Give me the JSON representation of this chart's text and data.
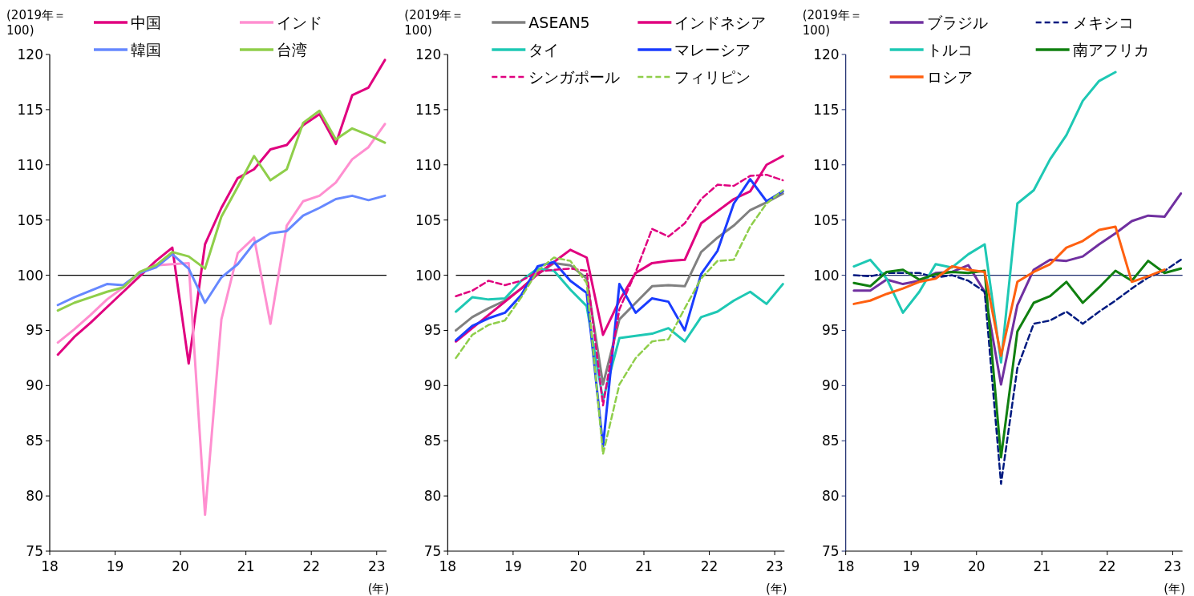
{
  "chart_data": [
    {
      "type": "line",
      "xlabel": "(年)",
      "ylabel": "(2019年＝100)",
      "legend": "top",
      "x": [
        18.125,
        18.375,
        18.625,
        18.875,
        19.125,
        19.375,
        19.625,
        19.875,
        20.125,
        20.375,
        20.625,
        20.875,
        21.125,
        21.375,
        21.625,
        21.875,
        22.125,
        22.375,
        22.625,
        22.875,
        23.125
      ],
      "xlim": [
        18,
        23.15
      ],
      "xticks": [
        18,
        19,
        20,
        21,
        22,
        23
      ],
      "ylim": [
        75,
        120
      ],
      "yticks": [
        75,
        80,
        85,
        90,
        95,
        100,
        105,
        110,
        115,
        120
      ],
      "ref_lines": [
        {
          "axis": "y",
          "value": 100,
          "color": "#000000"
        }
      ],
      "series": [
        {
          "name": "中国",
          "color": "#e0007f",
          "values": [
            92.8,
            94.4,
            95.7,
            97.1,
            98.5,
            99.9,
            101.3,
            102.5,
            92.0,
            102.8,
            106.1,
            108.8,
            109.6,
            111.4,
            111.8,
            113.6,
            114.6,
            111.9,
            116.3,
            117.0,
            119.5
          ]
        },
        {
          "name": "インド",
          "color": "#ff8fd0",
          "values": [
            93.9,
            95.1,
            96.4,
            97.8,
            98.9,
            100.2,
            100.9,
            101.0,
            101.1,
            78.3,
            96.0,
            102.0,
            103.4,
            95.6,
            104.5,
            106.7,
            107.2,
            108.4,
            110.5,
            111.6,
            113.7
          ]
        },
        {
          "name": "韓国",
          "color": "#6688ff",
          "values": [
            97.3,
            98.0,
            98.6,
            99.2,
            99.1,
            100.2,
            100.7,
            101.9,
            100.6,
            97.5,
            99.8,
            101.0,
            102.9,
            103.8,
            104.0,
            105.4,
            106.1,
            106.9,
            107.2,
            106.8,
            107.2
          ]
        },
        {
          "name": "台湾",
          "color": "#8fce4a",
          "values": [
            96.8,
            97.5,
            98.0,
            98.5,
            98.9,
            100.3,
            100.9,
            102.1,
            101.7,
            100.6,
            105.3,
            108.0,
            110.8,
            108.6,
            109.6,
            113.8,
            114.9,
            112.3,
            113.3,
            112.7,
            112.0
          ]
        }
      ]
    },
    {
      "type": "line",
      "xlabel": "(年)",
      "ylabel": "(2019年＝100)",
      "legend": "top",
      "x": [
        18.125,
        18.375,
        18.625,
        18.875,
        19.125,
        19.375,
        19.625,
        19.875,
        20.125,
        20.375,
        20.625,
        20.875,
        21.125,
        21.375,
        21.625,
        21.875,
        22.125,
        22.375,
        22.625,
        22.875,
        23.125
      ],
      "xlim": [
        18,
        23.15
      ],
      "xticks": [
        18,
        19,
        20,
        21,
        22,
        23
      ],
      "ylim": [
        75,
        120
      ],
      "yticks": [
        75,
        80,
        85,
        90,
        95,
        100,
        105,
        110,
        115,
        120
      ],
      "ref_lines": [
        {
          "axis": "y",
          "value": 100,
          "color": "#000000"
        }
      ],
      "series": [
        {
          "name": "ASEAN5",
          "color": "#808080",
          "values": [
            95.0,
            96.2,
            97.0,
            97.7,
            98.8,
            100.1,
            101.1,
            100.9,
            99.7,
            90.1,
            96.0,
            97.5,
            99.0,
            99.1,
            99.0,
            102.1,
            103.4,
            104.5,
            105.9,
            106.6,
            107.4
          ]
        },
        {
          "name": "インドネシア",
          "color": "#e0007f",
          "values": [
            94.0,
            95.2,
            96.4,
            97.6,
            98.8,
            100.1,
            101.2,
            102.3,
            101.6,
            94.6,
            97.7,
            100.2,
            101.1,
            101.3,
            101.4,
            104.7,
            105.8,
            106.9,
            107.6,
            110.0,
            110.8
          ]
        },
        {
          "name": "タイ",
          "color": "#1ec8b4",
          "values": [
            96.7,
            98.0,
            97.8,
            97.9,
            99.5,
            100.6,
            100.4,
            98.7,
            97.2,
            88.7,
            94.3,
            94.5,
            94.7,
            95.2,
            94.0,
            96.2,
            96.7,
            97.7,
            98.5,
            97.4,
            99.2
          ]
        },
        {
          "name": "マレーシア",
          "color": "#1a3cff",
          "values": [
            94.1,
            95.4,
            96.1,
            96.6,
            98.2,
            100.8,
            101.2,
            99.5,
            98.4,
            84.5,
            99.2,
            96.6,
            97.9,
            97.6,
            95.0,
            100.1,
            102.2,
            106.5,
            108.7,
            106.7,
            107.6
          ]
        },
        {
          "name": "シンガポール",
          "color": "#e0007f",
          "line_style": "dashed",
          "values": [
            98.1,
            98.6,
            99.5,
            99.1,
            99.5,
            100.3,
            100.5,
            100.6,
            100.4,
            88.2,
            96.9,
            100.3,
            104.2,
            103.5,
            104.7,
            106.9,
            108.2,
            108.1,
            109.0,
            109.1,
            108.6
          ]
        },
        {
          "name": "フィリピン",
          "color": "#8fce4a",
          "line_style": "dashed",
          "values": [
            92.5,
            94.6,
            95.5,
            95.9,
            98.0,
            100.4,
            101.6,
            101.3,
            99.3,
            83.8,
            90.1,
            92.5,
            94.0,
            94.2,
            97.0,
            99.7,
            101.3,
            101.4,
            104.4,
            106.5,
            107.7
          ]
        }
      ]
    },
    {
      "type": "line",
      "xlabel": "(年)",
      "ylabel": "(2019年＝100)",
      "legend": "top",
      "x": [
        18.125,
        18.375,
        18.625,
        18.875,
        19.125,
        19.375,
        19.625,
        19.875,
        20.125,
        20.375,
        20.625,
        20.875,
        21.125,
        21.375,
        21.625,
        21.875,
        22.125,
        22.375,
        22.625,
        22.875,
        23.125
      ],
      "xlim": [
        18,
        23.15
      ],
      "xticks": [
        18,
        19,
        20,
        21,
        22,
        23
      ],
      "ylim": [
        75,
        120
      ],
      "yticks": [
        75,
        80,
        85,
        90,
        95,
        100,
        105,
        110,
        115,
        120
      ],
      "ref_lines": [
        {
          "axis": "y",
          "value": 100,
          "color": "#1a2a6c"
        }
      ],
      "series": [
        {
          "name": "ブラジル",
          "color": "#7030a0",
          "values": [
            98.6,
            98.6,
            99.6,
            99.2,
            99.5,
            100.2,
            100.3,
            100.9,
            98.5,
            90.1,
            97.3,
            100.5,
            101.4,
            101.3,
            101.7,
            102.8,
            103.8,
            104.9,
            105.4,
            105.3,
            107.4
          ]
        },
        {
          "name": "メキシコ",
          "color": "#001a80",
          "line_style": "dashed",
          "values": [
            100.0,
            99.9,
            100.2,
            100.2,
            100.2,
            99.8,
            100.0,
            99.5,
            98.5,
            81.1,
            91.6,
            95.6,
            95.9,
            96.7,
            95.6,
            96.7,
            97.7,
            98.8,
            99.8,
            100.4,
            101.4
          ]
        },
        {
          "name": "トルコ",
          "color": "#1ec8b4",
          "values": [
            100.8,
            101.4,
            99.7,
            96.6,
            98.5,
            101.0,
            100.7,
            101.9,
            102.8,
            92.1,
            106.5,
            107.7,
            110.5,
            112.7,
            115.8,
            117.6,
            118.4,
            null,
            null,
            null,
            null
          ]
        },
        {
          "name": "南アフリカ",
          "color": "#108010",
          "values": [
            99.3,
            99.0,
            100.3,
            100.5,
            99.6,
            100.1,
            100.3,
            100.2,
            100.4,
            83.5,
            94.9,
            97.5,
            98.1,
            99.4,
            97.5,
            98.9,
            100.4,
            99.5,
            101.3,
            100.2,
            100.6
          ]
        },
        {
          "name": "ロシア",
          "color": "#ff6010",
          "values": [
            97.4,
            97.7,
            98.3,
            98.8,
            99.4,
            99.7,
            100.8,
            100.5,
            100.3,
            92.7,
            99.4,
            100.3,
            101.0,
            102.5,
            103.1,
            104.1,
            104.4,
            99.4,
            99.9,
            100.5,
            null
          ]
        }
      ]
    }
  ]
}
